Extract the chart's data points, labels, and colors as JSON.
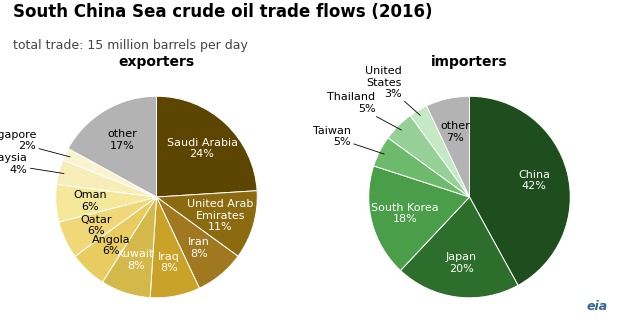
{
  "title": "South China Sea crude oil trade flows (2016)",
  "subtitle": "total trade: 15 million barrels per day",
  "exporters_label": "exporters",
  "importers_label": "importers",
  "exporters": {
    "labels": [
      "Saudi Arabia",
      "United Arab\nEmirates",
      "Iran",
      "Iraq",
      "Kuwait",
      "Angola",
      "Qatar",
      "Oman",
      "Malaysia",
      "Singapore",
      "other"
    ],
    "values": [
      24,
      11,
      8,
      8,
      8,
      6,
      6,
      6,
      4,
      2,
      17
    ],
    "colors": [
      "#5c4500",
      "#8b6a10",
      "#a07820",
      "#c9a227",
      "#d4b84a",
      "#e8cc60",
      "#f0d878",
      "#f5e89a",
      "#f7edb8",
      "#faf3d0",
      "#b3b3b3"
    ],
    "label_colors": [
      "white",
      "white",
      "white",
      "white",
      "white",
      "black",
      "black",
      "black",
      "black",
      "black",
      "black"
    ],
    "outside_indices": [
      8,
      9
    ]
  },
  "importers": {
    "labels": [
      "China",
      "Japan",
      "South Korea",
      "Taiwan",
      "Thailand",
      "United\nStates",
      "other"
    ],
    "values": [
      42,
      20,
      18,
      5,
      5,
      3,
      7
    ],
    "colors": [
      "#1e4d1e",
      "#2d6e2d",
      "#4a9e4a",
      "#6dba6d",
      "#96d096",
      "#c5e8c5",
      "#b3b3b3"
    ],
    "label_colors": [
      "white",
      "white",
      "white",
      "black",
      "black",
      "black",
      "black"
    ],
    "outside_indices": [
      3,
      4,
      5
    ]
  },
  "background_color": "#ffffff",
  "title_fontsize": 12,
  "subtitle_fontsize": 9,
  "label_fontsize": 8,
  "section_label_fontsize": 10
}
